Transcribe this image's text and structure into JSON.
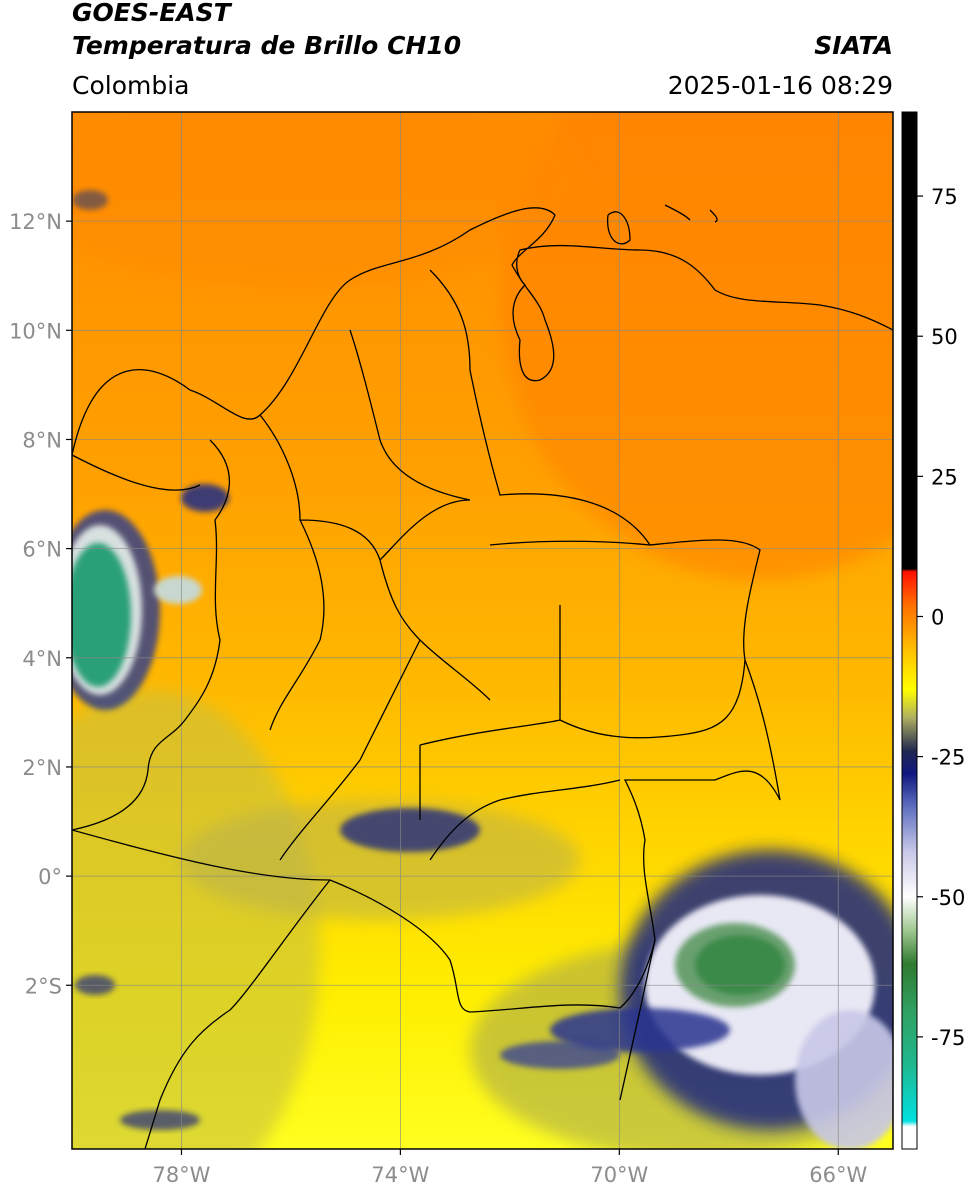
{
  "header": {
    "line1": "GOES-EAST",
    "line2": "Temperatura de Brillo CH10",
    "region": "Colombia",
    "brand": "SIATA",
    "datetime": "2025-01-16 08:29"
  },
  "map": {
    "lon_range": [
      -80,
      -65
    ],
    "lat_range": [
      -5,
      14
    ],
    "lon_ticks": [
      {
        "value": -78,
        "label": "78°W"
      },
      {
        "value": -74,
        "label": "74°W"
      },
      {
        "value": -70,
        "label": "70°W"
      },
      {
        "value": -66,
        "label": "66°W"
      }
    ],
    "lat_ticks": [
      {
        "value": 12,
        "label": "12°N"
      },
      {
        "value": 10,
        "label": "10°N"
      },
      {
        "value": 8,
        "label": "8°N"
      },
      {
        "value": 6,
        "label": "6°N"
      },
      {
        "value": 4,
        "label": "4°N"
      },
      {
        "value": 2,
        "label": "2°N"
      },
      {
        "value": 0,
        "label": "0°"
      },
      {
        "value": -2,
        "label": "2°S"
      }
    ]
  },
  "colorbar": {
    "range": [
      -95,
      90
    ],
    "ticks": [
      {
        "value": 75,
        "label": "75"
      },
      {
        "value": 50,
        "label": "50"
      },
      {
        "value": 25,
        "label": "25"
      },
      {
        "value": 0,
        "label": "0"
      },
      {
        "value": -25,
        "label": "-25"
      },
      {
        "value": -50,
        "label": "-50"
      },
      {
        "value": -75,
        "label": "-75"
      }
    ],
    "stops": [
      {
        "value": -95,
        "color": "#ffffff"
      },
      {
        "value": -91,
        "color": "#ffffff"
      },
      {
        "value": -90,
        "color": "#00e0e0"
      },
      {
        "value": -80,
        "color": "#20b890"
      },
      {
        "value": -70,
        "color": "#30a060"
      },
      {
        "value": -62,
        "color": "#307a30"
      },
      {
        "value": -56,
        "color": "#a0c890"
      },
      {
        "value": -50,
        "color": "#ffffff"
      },
      {
        "value": -42,
        "color": "#c8c8e8"
      },
      {
        "value": -34,
        "color": "#6070c0"
      },
      {
        "value": -28,
        "color": "#101880"
      },
      {
        "value": -24,
        "color": "#202850"
      },
      {
        "value": -18,
        "color": "#b0b060"
      },
      {
        "value": -13,
        "color": "#ffff00"
      },
      {
        "value": -6,
        "color": "#ffc000"
      },
      {
        "value": 2,
        "color": "#ff7000"
      },
      {
        "value": 8,
        "color": "#ff1000"
      },
      {
        "value": 8.5,
        "color": "#000000"
      },
      {
        "value": 90,
        "color": "#000000"
      }
    ]
  }
}
